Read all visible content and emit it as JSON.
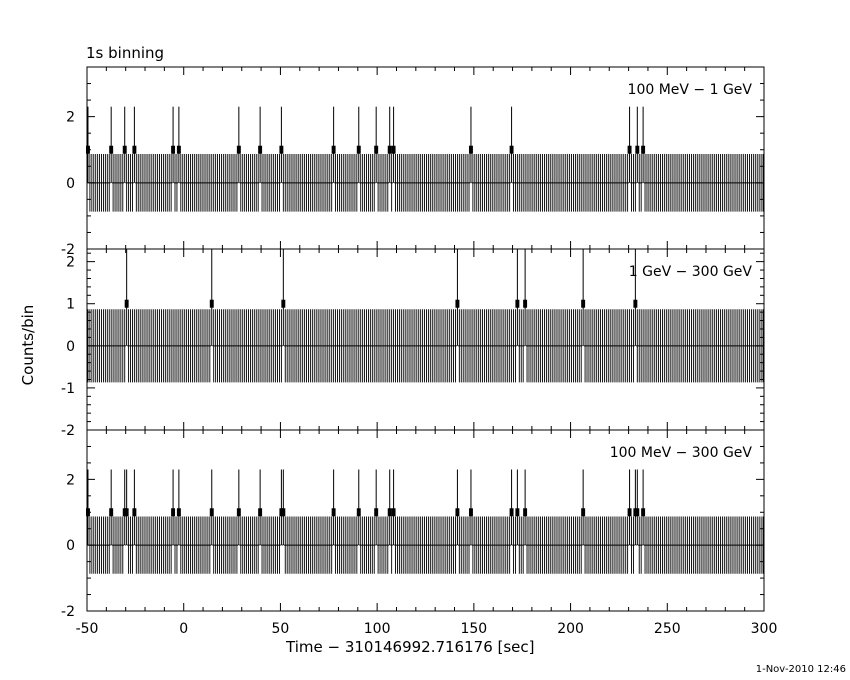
{
  "chart_data": {
    "type": "bar",
    "title": "1s binning",
    "xlabel": "Time − 310146992.716176 [sec]",
    "ylabel": "Counts/bin",
    "xlim": [
      -50,
      300
    ],
    "x_ticks": [
      -50,
      0,
      50,
      100,
      150,
      200,
      250,
      300
    ],
    "bin_width": 1,
    "error_bars": "sqrt(N), Gehrels-style (~0.87 for empty bins)",
    "grid": false,
    "panels": [
      {
        "name": "100 MeV − 1 GeV",
        "ylim": [
          -2,
          3.5
        ],
        "y_ticks": [
          -2,
          0,
          2
        ],
        "counts_1": [
          -49.5,
          -37.5,
          -30.5,
          -25.5,
          -5.5,
          -2.5,
          28.5,
          39.5,
          50.5,
          77.5,
          90.5,
          99.5,
          106.5,
          108.5,
          148.5,
          169.5,
          230.5,
          234.5,
          237.5
        ],
        "counts_0_elsewhere": true
      },
      {
        "name": "1 GeV − 300 GeV",
        "ylim": [
          -2,
          2.3
        ],
        "y_ticks": [
          -2,
          -1,
          0,
          1,
          2
        ],
        "counts_1": [
          -29.5,
          14.5,
          51.5,
          141.5,
          172.5,
          176.5,
          206.5,
          233.5
        ],
        "counts_0_elsewhere": true
      },
      {
        "name": "100 MeV − 300 GeV",
        "ylim": [
          -2,
          3.5
        ],
        "y_ticks": [
          -2,
          0,
          2
        ],
        "counts_1": [
          -49.5,
          -37.5,
          -30.5,
          -29.5,
          -25.5,
          -5.5,
          -2.5,
          14.5,
          28.5,
          39.5,
          50.5,
          51.5,
          77.5,
          90.5,
          99.5,
          106.5,
          108.5,
          141.5,
          148.5,
          169.5,
          172.5,
          176.5,
          206.5,
          230.5,
          233.5,
          234.5,
          237.5
        ],
        "counts_0_elsewhere": true
      }
    ]
  },
  "footer": {
    "timestamp": "1-Nov-2010 12:46"
  }
}
